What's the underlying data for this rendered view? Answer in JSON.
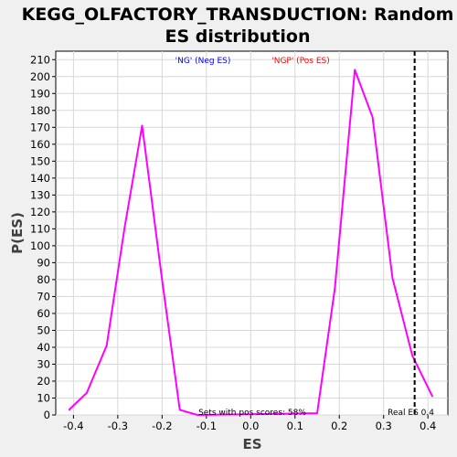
{
  "chart_data": {
    "type": "line",
    "title_line1": "KEGG_OLFACTORY_TRANSDUCTION: Random",
    "title_line2": "ES distribution",
    "xlabel": "ES",
    "ylabel": "P(ES)",
    "xlim": [
      -0.44,
      0.445
    ],
    "ylim": [
      0,
      215
    ],
    "xticks": [
      -0.4,
      -0.3,
      -0.2,
      -0.1,
      0.0,
      0.1,
      0.2,
      0.3,
      0.4
    ],
    "xtick_labels": [
      "-0.4",
      "-0.3",
      "-0.2",
      "-0.1",
      "0.0",
      "0.1",
      "0.2",
      "0.3",
      "0.4"
    ],
    "yticks": [
      0,
      10,
      20,
      30,
      40,
      50,
      60,
      70,
      80,
      90,
      100,
      110,
      120,
      130,
      140,
      150,
      160,
      170,
      180,
      190,
      200,
      210
    ],
    "ytick_labels": [
      "0",
      "10",
      "20",
      "30",
      "40",
      "50",
      "60",
      "70",
      "80",
      "90",
      "100",
      "110",
      "120",
      "130",
      "140",
      "150",
      "160",
      "170",
      "180",
      "190",
      "200",
      "210"
    ],
    "grid": true,
    "legend": [
      {
        "label": "'NG' (Neg ES)",
        "color": "#0000ff"
      },
      {
        "label": "'NGP' (Pos ES)",
        "color": "#ff0000"
      }
    ],
    "series": [
      {
        "color": "#ff00ff",
        "x": [
          -0.41,
          -0.37,
          -0.325,
          -0.285,
          -0.245,
          -0.2,
          -0.16,
          -0.12,
          0.15,
          0.19,
          0.235,
          0.275,
          0.32,
          0.365,
          0.41
        ],
        "y": [
          3,
          13,
          41,
          110,
          171,
          80,
          3,
          0,
          1,
          75,
          204,
          176,
          81,
          35,
          11
        ]
      }
    ],
    "real_es": 0.37,
    "real_es_label": "Real ES 0.4",
    "annotation": "Sets with pos scores: 58%"
  }
}
